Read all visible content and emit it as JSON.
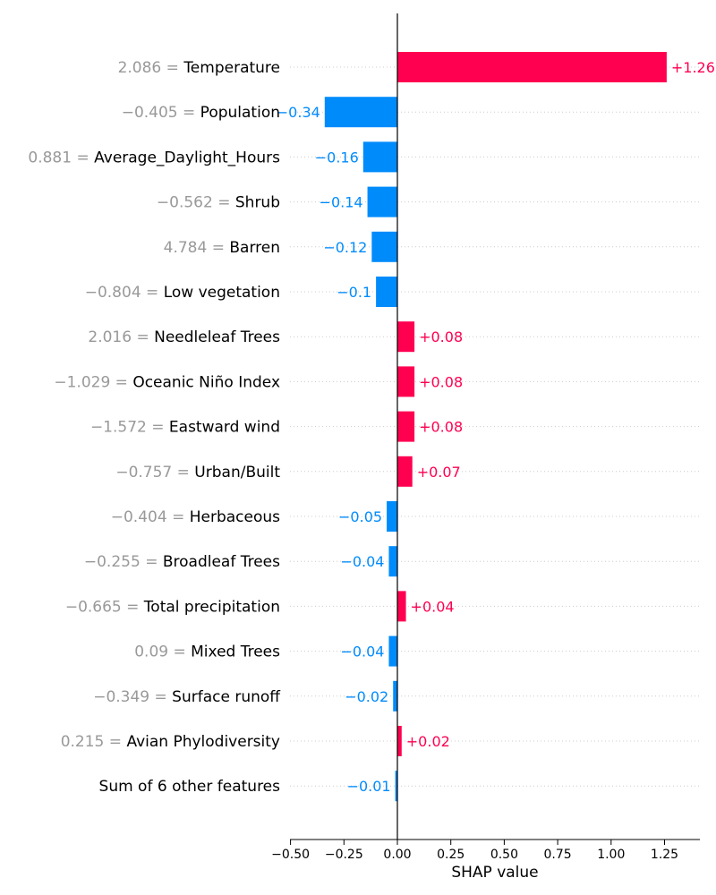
{
  "chart_data": {
    "type": "bar",
    "orientation": "horizontal",
    "xlabel": "SHAP value",
    "xlim": [
      -0.5,
      1.43
    ],
    "xticks": [
      -0.5,
      -0.25,
      0.0,
      0.25,
      0.5,
      0.75,
      1.0,
      1.25
    ],
    "xtick_labels": [
      "−0.50",
      "−0.25",
      "0.00",
      "0.25",
      "0.50",
      "0.75",
      "1.00",
      "1.25"
    ],
    "grid": "horizontal dotted lines per row",
    "colors": {
      "positive": "#ff0051",
      "negative": "#008bfb",
      "feature_value": "#999999",
      "feature_name": "#000000"
    },
    "rows": [
      {
        "value_text": "2.086 =",
        "feature": "Temperature",
        "shap": 1.26,
        "label": "+1.26"
      },
      {
        "value_text": "−0.405 =",
        "feature": "Population",
        "shap": -0.34,
        "label": "−0.34"
      },
      {
        "value_text": "0.881 =",
        "feature": "Average_Daylight_Hours",
        "shap": -0.16,
        "label": "−0.16"
      },
      {
        "value_text": "−0.562 =",
        "feature": "Shrub",
        "shap": -0.14,
        "label": "−0.14"
      },
      {
        "value_text": "4.784 =",
        "feature": "Barren",
        "shap": -0.12,
        "label": "−0.12"
      },
      {
        "value_text": "−0.804 =",
        "feature": "Low vegetation",
        "shap": -0.1,
        "label": "−0.1"
      },
      {
        "value_text": "2.016 =",
        "feature": "Needleleaf Trees",
        "shap": 0.08,
        "label": "+0.08"
      },
      {
        "value_text": "−1.029 =",
        "feature": "Oceanic Niño Index",
        "shap": 0.08,
        "label": "+0.08"
      },
      {
        "value_text": "−1.572 =",
        "feature": "Eastward wind",
        "shap": 0.08,
        "label": "+0.08"
      },
      {
        "value_text": "−0.757 =",
        "feature": "Urban/Built",
        "shap": 0.07,
        "label": "+0.07"
      },
      {
        "value_text": "−0.404 =",
        "feature": "Herbaceous",
        "shap": -0.05,
        "label": "−0.05"
      },
      {
        "value_text": "−0.255 =",
        "feature": "Broadleaf Trees",
        "shap": -0.04,
        "label": "−0.04"
      },
      {
        "value_text": "−0.665 =",
        "feature": "Total precipitation",
        "shap": 0.04,
        "label": "+0.04"
      },
      {
        "value_text": "0.09 =",
        "feature": "Mixed Trees",
        "shap": -0.04,
        "label": "−0.04"
      },
      {
        "value_text": "−0.349 =",
        "feature": "Surface runoff",
        "shap": -0.02,
        "label": "−0.02"
      },
      {
        "value_text": "0.215 =",
        "feature": "Avian Phylodiversity",
        "shap": 0.02,
        "label": "+0.02"
      },
      {
        "value_text": "",
        "feature": "Sum of 6 other features",
        "shap": -0.01,
        "label": "−0.01"
      }
    ]
  }
}
